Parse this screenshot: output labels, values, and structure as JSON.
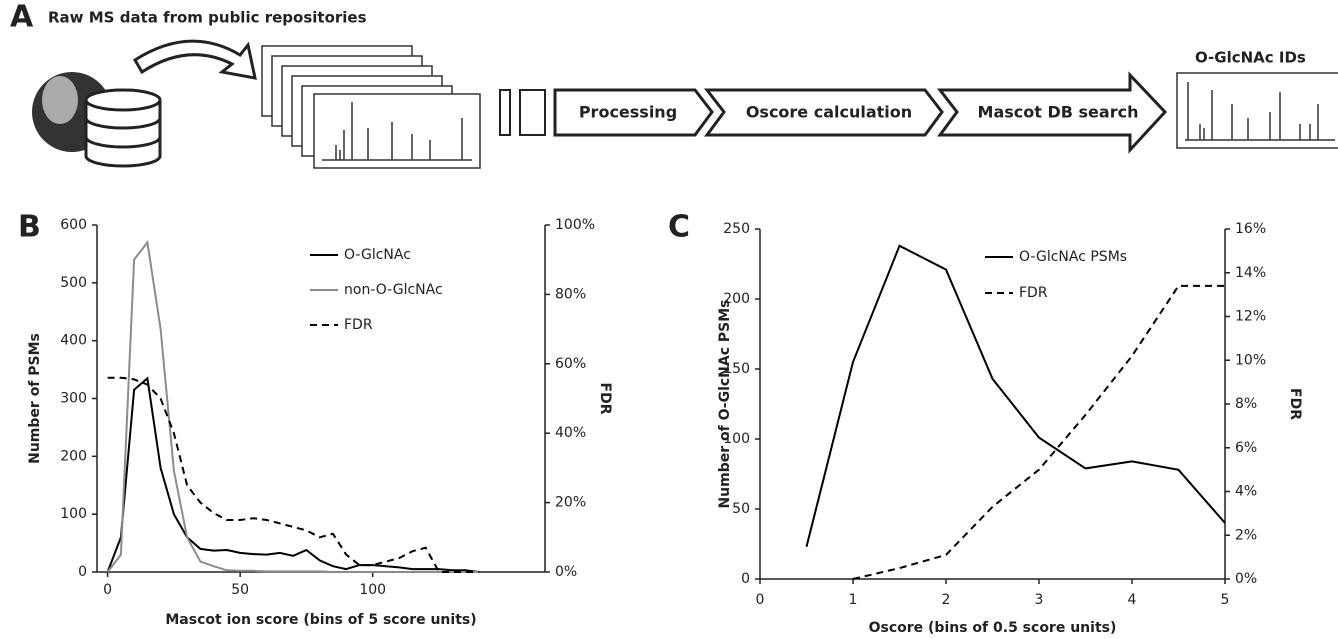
{
  "panel_a": {
    "label": "A",
    "title": "Raw MS data from public repositories",
    "steps": [
      "Processing",
      "Oscore calculation",
      "Mascot DB search"
    ],
    "result_title": "O-GlcNAc IDs"
  },
  "chart_data": [
    {
      "type": "line",
      "panel_label": "B",
      "x_label": "Mascot ion score (bins of 5 score units)",
      "y_label": "Number of PSMs",
      "y2_label": "FDR",
      "x": [
        0,
        5,
        10,
        15,
        20,
        25,
        30,
        35,
        40,
        45,
        50,
        55,
        60,
        65,
        70,
        75,
        80,
        85,
        90,
        95,
        100,
        105,
        110,
        115,
        120,
        125,
        130,
        135,
        140
      ],
      "series": [
        {
          "name": "O-GlcNAc",
          "color": "#000000",
          "dash": false,
          "values": [
            0,
            60,
            315,
            335,
            180,
            100,
            60,
            40,
            37,
            38,
            33,
            31,
            30,
            33,
            28,
            38,
            20,
            10,
            5,
            12,
            12,
            10,
            8,
            5,
            5,
            5,
            3,
            3,
            0
          ]
        },
        {
          "name": "non-O-GlcNAc",
          "color": "#8c8c8c",
          "dash": false,
          "values": [
            0,
            30,
            540,
            570,
            420,
            175,
            60,
            18,
            10,
            3,
            2,
            2,
            1,
            1,
            1,
            1,
            1,
            0,
            0,
            0,
            0,
            0,
            0,
            0,
            0,
            0,
            0,
            0,
            0
          ]
        },
        {
          "name": "FDR",
          "color": "#000000",
          "dash": true,
          "axis": "y2",
          "values": [
            56,
            56,
            55.5,
            54,
            50,
            40,
            25,
            20,
            17,
            15,
            15,
            15.5,
            15,
            14,
            13,
            12,
            10,
            11,
            5,
            2,
            2,
            3,
            4,
            6,
            7,
            0,
            0,
            0,
            0
          ]
        }
      ],
      "xlim": [
        -4,
        165
      ],
      "xticks": [
        0,
        50,
        100
      ],
      "ylim": [
        0,
        600
      ],
      "yticks": [
        0,
        100,
        200,
        300,
        400,
        500,
        600
      ],
      "y2lim": [
        0,
        100
      ],
      "y2ticks": [
        {
          "value": 0,
          "label": "0%"
        },
        {
          "value": 20,
          "label": "20%"
        },
        {
          "value": 40,
          "label": "40%"
        },
        {
          "value": 60,
          "label": "60%"
        },
        {
          "value": 80,
          "label": "80%"
        },
        {
          "value": 100,
          "label": "100%"
        }
      ]
    },
    {
      "type": "line",
      "panel_label": "C",
      "x_label": "Oscore (bins of 0.5 score units)",
      "y_label": "Number of O-GlcNAc PSMs",
      "y2_label": "FDR",
      "x": [
        0.5,
        1,
        1.5,
        2,
        2.5,
        3,
        3.5,
        4,
        4.5,
        5
      ],
      "series": [
        {
          "name": "O-GlcNAc PSMs",
          "color": "#000000",
          "dash": false,
          "values": [
            23,
            155,
            238,
            221,
            143,
            101,
            79,
            84,
            78,
            40
          ]
        },
        {
          "name": "FDR",
          "color": "#000000",
          "dash": true,
          "axis": "y2",
          "values": [
            null,
            0,
            0.5,
            1.1,
            3.3,
            5,
            7.5,
            10.2,
            13.4,
            13.4
          ]
        }
      ],
      "xlim": [
        0,
        5
      ],
      "xticks": [
        0,
        1,
        2,
        3,
        4,
        5
      ],
      "ylim": [
        0,
        250
      ],
      "yticks": [
        0,
        50,
        100,
        150,
        200,
        250
      ],
      "y2lim": [
        0,
        16
      ],
      "y2ticks": [
        {
          "value": 0,
          "label": "0%"
        },
        {
          "value": 2,
          "label": "2%"
        },
        {
          "value": 4,
          "label": "4%"
        },
        {
          "value": 6,
          "label": "6%"
        },
        {
          "value": 8,
          "label": "8%"
        },
        {
          "value": 10,
          "label": "10%"
        },
        {
          "value": 12,
          "label": "12%"
        },
        {
          "value": 14,
          "label": "14%"
        },
        {
          "value": 16,
          "label": "16%"
        }
      ]
    }
  ]
}
